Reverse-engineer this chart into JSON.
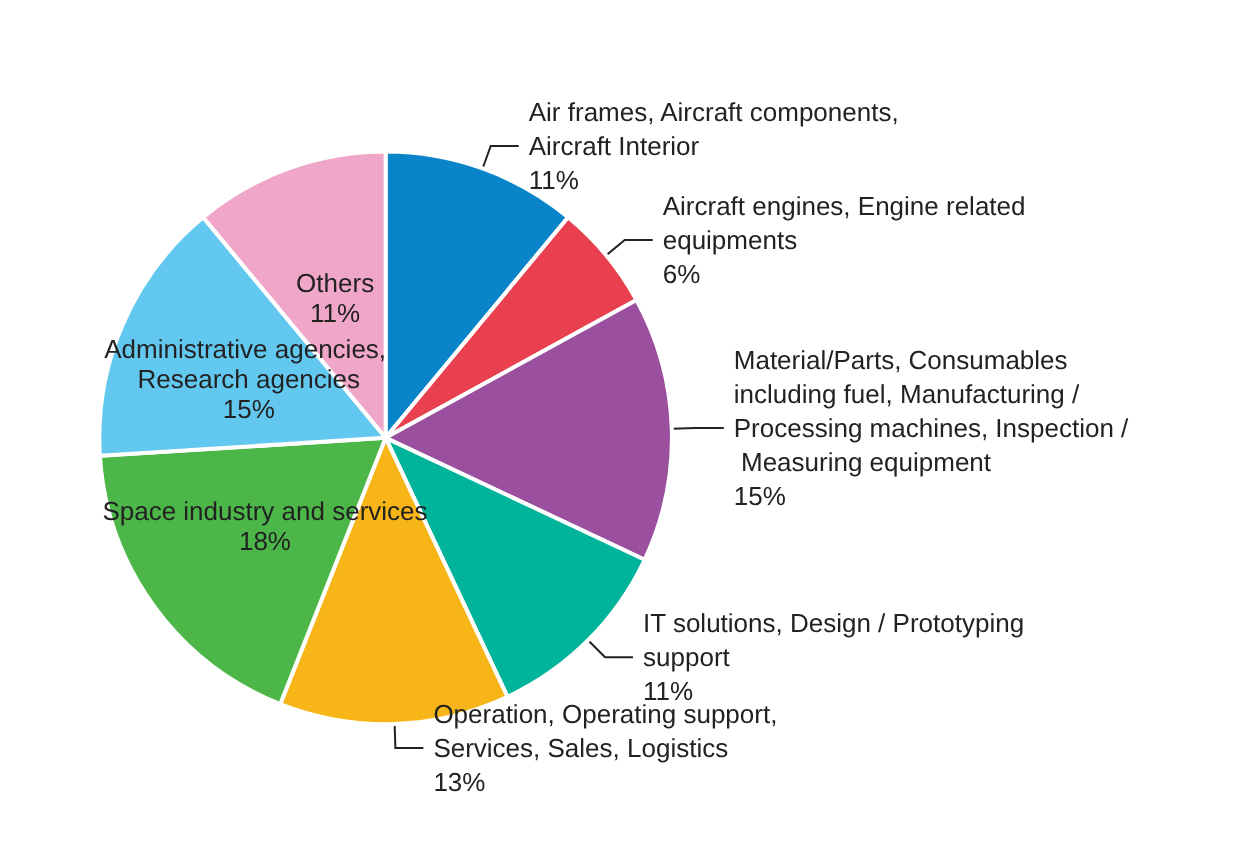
{
  "chart_data": {
    "type": "pie",
    "categories": [
      "Air frames, Aircraft components, Aircraft Interior",
      "Aircraft engines, Engine related equipments",
      "Material/Parts, Consumables including fuel, Manufacturing / Processing machines, Inspection / Measuring equipment",
      "IT solutions, Design / Prototyping support",
      "Operation, Operating support, Services, Sales, Logistics",
      "Space industry and services",
      "Administrative agencies, Research agencies",
      "Others"
    ],
    "values": [
      11,
      6,
      15,
      11,
      13,
      18,
      15,
      11
    ],
    "value_labels": [
      "11%",
      "6%",
      "15%",
      "11%",
      "13%",
      "18%",
      "15%",
      "11%"
    ],
    "colors": [
      "#0a84c8",
      "#e8404f",
      "#9b4f9f",
      "#00b39b",
      "#f7b518",
      "#4cb748",
      "#63c8ef",
      "#f0a6c8"
    ],
    "legend": false
  }
}
